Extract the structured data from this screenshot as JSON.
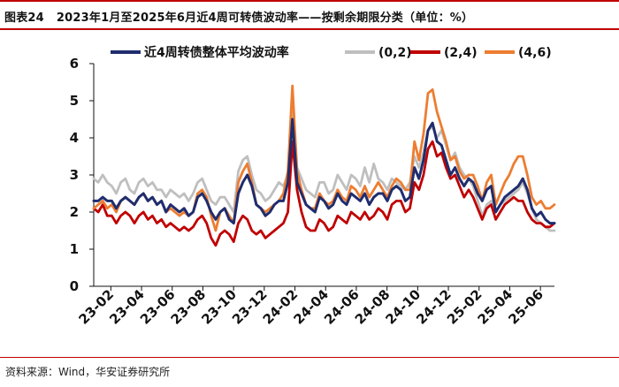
{
  "header": {
    "figure_label": "图表24",
    "figure_title": "2023年1月至2025年6月近4周可转债波动率——按剩余期限分类（单位：%）"
  },
  "source": "资料来源：Wind，华安证券研究所",
  "colors": {
    "overall": "#1f2d6e",
    "range_0_2": "#bfbfbf",
    "range_2_4": "#c00000",
    "range_4_6": "#ed7d31",
    "frame": "#c00000"
  },
  "chart_data": {
    "type": "line",
    "title": "2023年1月至2025年6月近4周可转债波动率——按剩余期限分类（单位：%）",
    "xlabel": "",
    "ylabel": "",
    "ylim": [
      0,
      6
    ],
    "yticks": [
      "0",
      "1",
      "2",
      "3",
      "4",
      "5",
      "6"
    ],
    "xticks": [
      "23-02",
      "23-04",
      "23-06",
      "23-08",
      "23-10",
      "23-12",
      "24-02",
      "24-04",
      "24-06",
      "24-08",
      "24-10",
      "24-12",
      "25-02",
      "25-04",
      "25-06"
    ],
    "x_range": [
      "2023-01",
      "2025-06"
    ],
    "grid": false,
    "legend_position": "top",
    "series": [
      {
        "name": "近4周转债整体平均波动率",
        "color": "#1f2d6e",
        "values": [
          2.3,
          2.3,
          2.4,
          2.3,
          2.3,
          2.1,
          2.3,
          2.4,
          2.3,
          2.2,
          2.4,
          2.5,
          2.3,
          2.4,
          2.2,
          2.3,
          2.0,
          2.2,
          2.1,
          2.0,
          2.1,
          1.9,
          2.0,
          2.4,
          2.5,
          2.3,
          2.0,
          1.8,
          2.0,
          2.1,
          1.8,
          1.7,
          2.5,
          2.8,
          3.0,
          2.7,
          2.2,
          2.1,
          1.9,
          2.0,
          2.2,
          2.3,
          2.3,
          2.8,
          4.5,
          2.8,
          2.5,
          2.2,
          2.1,
          2.0,
          2.4,
          2.3,
          2.1,
          2.2,
          2.5,
          2.3,
          2.2,
          2.5,
          2.4,
          2.3,
          2.5,
          2.2,
          2.4,
          2.5,
          2.5,
          2.3,
          2.6,
          2.7,
          2.6,
          2.3,
          2.4,
          3.2,
          2.9,
          3.4,
          4.2,
          4.4,
          3.9,
          3.8,
          3.4,
          3.0,
          3.2,
          2.9,
          2.7,
          2.9,
          2.8,
          2.5,
          2.3,
          2.6,
          2.7,
          2.0,
          2.2,
          2.4,
          2.5,
          2.6,
          2.7,
          2.9,
          2.6,
          2.1,
          1.9,
          2.0,
          1.8,
          1.7,
          1.7
        ]
      },
      {
        "name": "(0,2)",
        "color": "#bfbfbf",
        "values": [
          2.9,
          2.8,
          3.0,
          2.8,
          2.7,
          2.5,
          2.8,
          2.9,
          2.6,
          2.5,
          2.8,
          2.9,
          2.7,
          2.8,
          2.6,
          2.6,
          2.4,
          2.6,
          2.5,
          2.4,
          2.5,
          2.3,
          2.5,
          2.8,
          2.9,
          2.6,
          2.3,
          2.2,
          2.4,
          2.4,
          2.2,
          2.0,
          3.1,
          3.4,
          3.5,
          3.0,
          2.6,
          2.5,
          2.3,
          2.4,
          2.6,
          2.8,
          2.7,
          3.0,
          4.7,
          3.2,
          2.9,
          2.6,
          2.5,
          2.4,
          2.8,
          2.8,
          2.5,
          2.6,
          3.0,
          2.8,
          2.6,
          3.0,
          2.9,
          2.7,
          3.2,
          2.8,
          3.3,
          2.9,
          2.8,
          2.6,
          2.9,
          2.8,
          2.7,
          2.6,
          2.8,
          3.5,
          3.2,
          3.6,
          4.2,
          4.3,
          4.0,
          4.2,
          3.8,
          3.4,
          3.6,
          3.2,
          3.0,
          2.9,
          2.7,
          2.3,
          1.9,
          2.2,
          2.3,
          2.0,
          2.2,
          2.3,
          2.4,
          2.5,
          2.6,
          2.8,
          2.5,
          2.1,
          1.8,
          1.7,
          1.6,
          1.5,
          1.5
        ]
      },
      {
        "name": "(2,4)",
        "color": "#c00000",
        "values": [
          2.1,
          2.0,
          2.2,
          1.9,
          1.9,
          1.7,
          1.9,
          2.0,
          1.9,
          1.7,
          1.9,
          2.0,
          1.8,
          1.9,
          1.7,
          1.8,
          1.6,
          1.7,
          1.6,
          1.5,
          1.6,
          1.5,
          1.6,
          1.8,
          1.9,
          1.7,
          1.3,
          1.1,
          1.4,
          1.5,
          1.4,
          1.2,
          1.7,
          1.9,
          1.8,
          1.5,
          1.4,
          1.5,
          1.3,
          1.4,
          1.5,
          1.6,
          1.7,
          2.0,
          3.9,
          2.6,
          2.0,
          1.6,
          1.5,
          1.5,
          1.8,
          1.7,
          1.5,
          1.6,
          1.9,
          1.8,
          1.7,
          2.0,
          1.9,
          1.8,
          2.0,
          1.8,
          1.9,
          2.1,
          2.0,
          1.8,
          2.2,
          2.3,
          2.3,
          2.0,
          2.1,
          2.8,
          2.6,
          3.0,
          3.7,
          3.9,
          3.5,
          3.6,
          3.2,
          2.9,
          3.0,
          2.7,
          2.4,
          2.6,
          2.4,
          2.1,
          1.8,
          2.1,
          2.2,
          1.8,
          2.0,
          2.2,
          2.3,
          2.4,
          2.3,
          2.3,
          2.0,
          1.8,
          1.7,
          1.7,
          1.6,
          1.6,
          1.7
        ]
      },
      {
        "name": "(4,6)",
        "color": "#ed7d31",
        "values": [
          2.1,
          2.2,
          2.3,
          2.1,
          2.2,
          2.0,
          2.3,
          2.4,
          2.3,
          2.2,
          2.4,
          2.5,
          2.3,
          2.4,
          2.2,
          2.3,
          2.0,
          2.1,
          2.0,
          1.9,
          2.0,
          1.9,
          2.0,
          2.5,
          2.6,
          2.4,
          1.9,
          1.5,
          2.0,
          2.1,
          1.9,
          1.7,
          2.8,
          3.1,
          3.3,
          2.8,
          2.2,
          2.1,
          2.0,
          2.1,
          2.2,
          2.3,
          2.5,
          3.1,
          5.4,
          3.1,
          2.6,
          2.2,
          2.1,
          2.1,
          2.5,
          2.3,
          2.2,
          2.3,
          2.6,
          2.4,
          2.3,
          2.7,
          2.6,
          2.4,
          2.7,
          2.4,
          2.6,
          2.8,
          2.6,
          2.4,
          2.7,
          2.9,
          2.8,
          2.6,
          2.6,
          3.9,
          3.4,
          4.1,
          5.2,
          5.3,
          4.7,
          4.3,
          3.9,
          3.4,
          3.5,
          3.1,
          2.9,
          3.0,
          3.0,
          2.7,
          2.3,
          2.8,
          3.0,
          2.2,
          2.5,
          2.8,
          3.0,
          3.3,
          3.5,
          3.5,
          3.0,
          2.4,
          2.2,
          2.3,
          2.1,
          2.1,
          2.2
        ]
      }
    ]
  }
}
